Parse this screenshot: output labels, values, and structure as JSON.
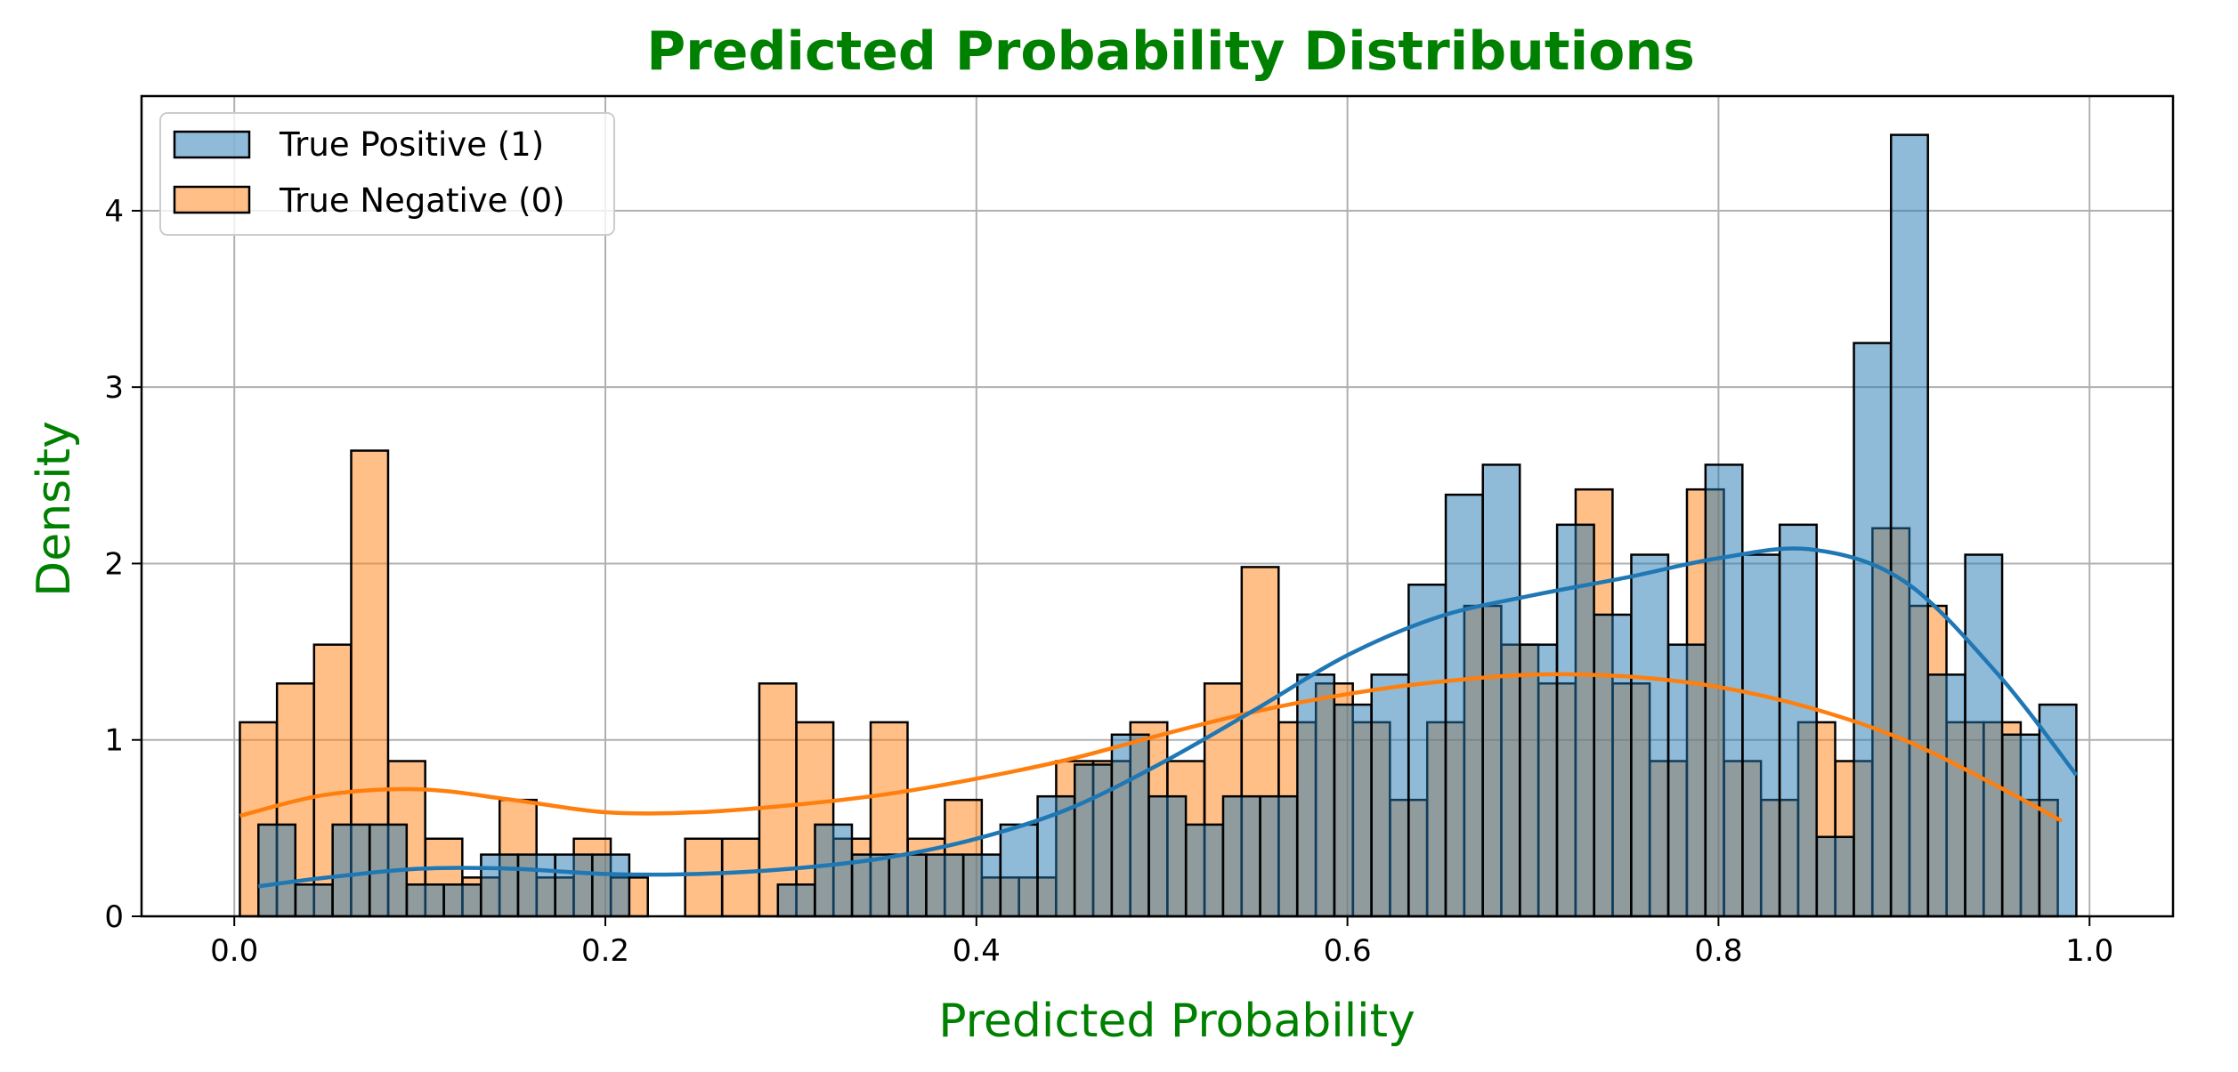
{
  "colors": {
    "title": "#008000",
    "axis_label": "#008000",
    "positive": "#1f77b4",
    "negative": "#ff7f0e",
    "grid": "#b0b0b0"
  },
  "chart_data": {
    "type": "histogram",
    "title": "Predicted Probability Distributions",
    "xlabel": "Predicted Probability",
    "ylabel": "Density",
    "xlim": [
      -0.05,
      1.045
    ],
    "ylim": [
      0,
      4.65
    ],
    "xticks": [
      0.0,
      0.2,
      0.4,
      0.6,
      0.8,
      1.0
    ],
    "xtick_labels": [
      "0.0",
      "0.2",
      "0.4",
      "0.6",
      "0.8",
      "1.0"
    ],
    "yticks": [
      0,
      1,
      2,
      3,
      4
    ],
    "ytick_labels": [
      "0",
      "1",
      "2",
      "3",
      "4"
    ],
    "grid": true,
    "legend_position": "top-left",
    "bin_width": 0.0199,
    "series": [
      {
        "name": "True Positive (1)",
        "color": "#1f77b4",
        "bin_starts": [
          0.013,
          0.033,
          0.053,
          0.073,
          0.093,
          0.113,
          0.133,
          0.153,
          0.173,
          0.193,
          0.293,
          0.313,
          0.333,
          0.353,
          0.373,
          0.393,
          0.413,
          0.433,
          0.453,
          0.473,
          0.493,
          0.513,
          0.533,
          0.553,
          0.573,
          0.593,
          0.613,
          0.633,
          0.653,
          0.673,
          0.693,
          0.713,
          0.733,
          0.753,
          0.773,
          0.793,
          0.813,
          0.833,
          0.853,
          0.873,
          0.893,
          0.913,
          0.933,
          0.953,
          0.973
        ],
        "values": [
          0.52,
          0.18,
          0.52,
          0.52,
          0.18,
          0.18,
          0.35,
          0.35,
          0.35,
          0.35,
          0.18,
          0.52,
          0.35,
          0.35,
          0.35,
          0.35,
          0.52,
          0.68,
          0.86,
          1.03,
          0.68,
          0.52,
          0.68,
          0.68,
          1.37,
          1.2,
          1.37,
          1.88,
          2.39,
          2.56,
          1.54,
          2.22,
          1.71,
          2.05,
          1.54,
          2.56,
          2.05,
          2.22,
          0.45,
          3.25,
          4.43,
          1.37,
          2.05,
          1.03,
          1.2
        ],
        "kde_x": [
          0.013,
          0.05,
          0.1,
          0.15,
          0.2,
          0.25,
          0.3,
          0.35,
          0.4,
          0.45,
          0.5,
          0.55,
          0.6,
          0.65,
          0.7,
          0.75,
          0.8,
          0.85,
          0.9,
          0.95,
          0.993
        ],
        "kde_y": [
          0.17,
          0.22,
          0.27,
          0.27,
          0.24,
          0.24,
          0.27,
          0.33,
          0.44,
          0.61,
          0.87,
          1.17,
          1.48,
          1.7,
          1.82,
          1.92,
          2.03,
          2.08,
          1.9,
          1.38,
          0.8
        ]
      },
      {
        "name": "True Negative (0)",
        "color": "#ff7f0e",
        "bin_starts": [
          0.003,
          0.023,
          0.043,
          0.063,
          0.083,
          0.103,
          0.123,
          0.143,
          0.163,
          0.183,
          0.203,
          0.243,
          0.263,
          0.283,
          0.303,
          0.323,
          0.343,
          0.363,
          0.383,
          0.403,
          0.423,
          0.443,
          0.463,
          0.483,
          0.503,
          0.523,
          0.543,
          0.563,
          0.583,
          0.603,
          0.623,
          0.643,
          0.663,
          0.683,
          0.703,
          0.723,
          0.743,
          0.763,
          0.783,
          0.803,
          0.823,
          0.843,
          0.863,
          0.883,
          0.903,
          0.923,
          0.943,
          0.963
        ],
        "values": [
          1.1,
          1.32,
          1.54,
          2.64,
          0.88,
          0.44,
          0.22,
          0.66,
          0.22,
          0.44,
          0.22,
          0.44,
          0.44,
          1.32,
          1.1,
          0.44,
          1.1,
          0.44,
          0.66,
          0.22,
          0.22,
          0.88,
          0.88,
          1.1,
          0.88,
          1.32,
          1.98,
          1.1,
          1.32,
          1.1,
          0.66,
          1.1,
          1.76,
          1.54,
          1.32,
          2.42,
          1.32,
          0.88,
          2.42,
          0.88,
          0.66,
          1.1,
          0.88,
          2.2,
          1.76,
          1.1,
          1.1,
          0.66
        ],
        "kde_x": [
          0.003,
          0.05,
          0.1,
          0.15,
          0.2,
          0.25,
          0.3,
          0.35,
          0.4,
          0.45,
          0.5,
          0.55,
          0.6,
          0.65,
          0.7,
          0.75,
          0.8,
          0.85,
          0.9,
          0.95,
          0.985
        ],
        "kde_y": [
          0.57,
          0.69,
          0.72,
          0.66,
          0.59,
          0.59,
          0.63,
          0.69,
          0.78,
          0.89,
          1.03,
          1.16,
          1.26,
          1.33,
          1.37,
          1.36,
          1.3,
          1.18,
          1.0,
          0.74,
          0.54
        ]
      }
    ]
  }
}
